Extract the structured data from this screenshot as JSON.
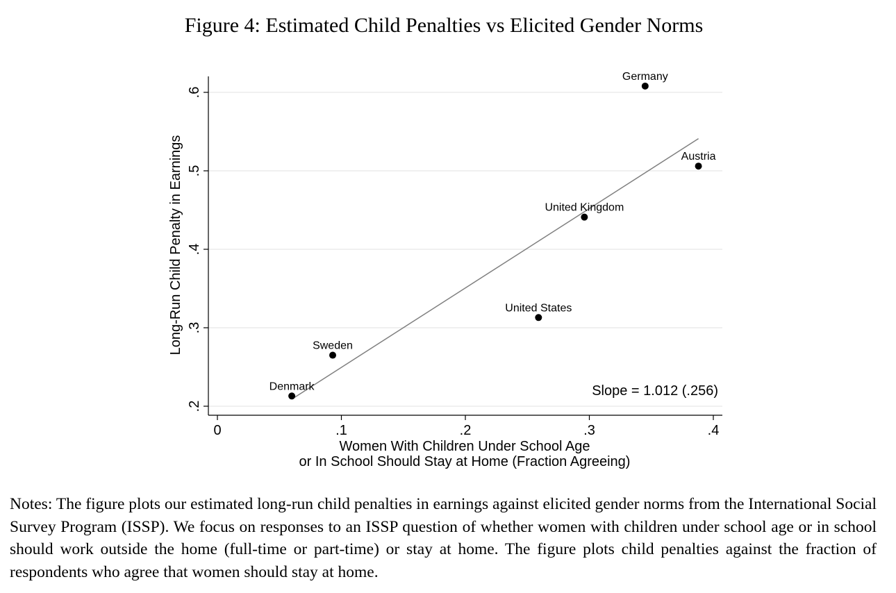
{
  "figure": {
    "title": "Figure 4: Estimated Child Penalties vs Elicited Gender Norms",
    "notes": "Notes: The figure plots our estimated long-run child penalties in earnings against elicited gender norms from the International Social Survey Program (ISSP). We focus on responses to an ISSP question of whether women with children under school age or in school should work outside the home (full-time or part-time) or stay at home. The figure plots child penalties against the fraction of respondents who agree that women should stay at home."
  },
  "chart_data": {
    "type": "scatter",
    "title": "",
    "xlabel_lines": [
      "Women With Children Under School Age",
      "or In School Should Stay at Home (Fraction Agreeing)"
    ],
    "ylabel": "Long-Run Child Penalty in Earnings",
    "xlim": [
      0,
      0.4
    ],
    "ylim": [
      0.2,
      0.6
    ],
    "x_ticks": [
      0,
      0.1,
      0.2,
      0.3,
      0.4
    ],
    "x_tick_labels": [
      "0",
      ".1",
      ".2",
      ".3",
      ".4"
    ],
    "y_ticks": [
      0.2,
      0.3,
      0.4,
      0.5,
      0.6
    ],
    "y_tick_labels": [
      ".2",
      ".3",
      ".4",
      ".5",
      ".6"
    ],
    "grid": "horizontal",
    "points": [
      {
        "label": "Denmark",
        "x": 0.06,
        "y": 0.213
      },
      {
        "label": "Sweden",
        "x": 0.093,
        "y": 0.265
      },
      {
        "label": "United States",
        "x": 0.259,
        "y": 0.313
      },
      {
        "label": "United Kingdom",
        "x": 0.296,
        "y": 0.441
      },
      {
        "label": "Germany",
        "x": 0.345,
        "y": 0.608
      },
      {
        "label": "Austria",
        "x": 0.388,
        "y": 0.506
      }
    ],
    "fit_line": {
      "x": [
        0.06,
        0.388
      ],
      "y": [
        0.209,
        0.541
      ]
    },
    "annotation": "Slope = 1.012 (.256)",
    "colors": {
      "points": "#000000",
      "fit_line": "#7f7f7f",
      "grid": "#e6e6e6",
      "axis": "#000000"
    }
  }
}
